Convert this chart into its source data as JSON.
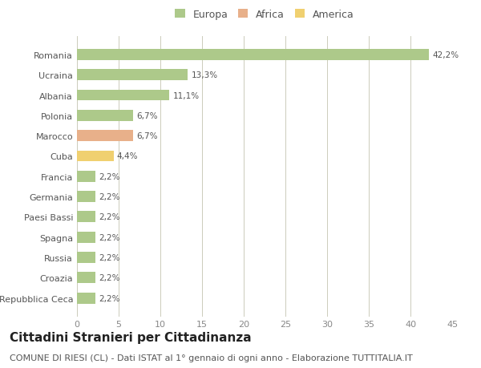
{
  "countries": [
    "Romania",
    "Ucraina",
    "Albania",
    "Polonia",
    "Marocco",
    "Cuba",
    "Francia",
    "Germania",
    "Paesi Bassi",
    "Spagna",
    "Russia",
    "Croazia",
    "Repubblica Ceca"
  ],
  "values": [
    42.2,
    13.3,
    11.1,
    6.7,
    6.7,
    4.4,
    2.2,
    2.2,
    2.2,
    2.2,
    2.2,
    2.2,
    2.2
  ],
  "labels": [
    "42,2%",
    "13,3%",
    "11,1%",
    "6,7%",
    "6,7%",
    "4,4%",
    "2,2%",
    "2,2%",
    "2,2%",
    "2,2%",
    "2,2%",
    "2,2%",
    "2,2%"
  ],
  "colors": [
    "#adc98a",
    "#adc98a",
    "#adc98a",
    "#adc98a",
    "#e8b08a",
    "#f0d070",
    "#adc98a",
    "#adc98a",
    "#adc98a",
    "#adc98a",
    "#adc98a",
    "#adc98a",
    "#adc98a"
  ],
  "legend_labels": [
    "Europa",
    "Africa",
    "America"
  ],
  "legend_colors": [
    "#adc98a",
    "#e8b08a",
    "#f0d070"
  ],
  "xlim": [
    0,
    45
  ],
  "xticks": [
    0,
    5,
    10,
    15,
    20,
    25,
    30,
    35,
    40,
    45
  ],
  "title": "Cittadini Stranieri per Cittadinanza",
  "subtitle": "COMUNE DI RIESI (CL) - Dati ISTAT al 1° gennaio di ogni anno - Elaborazione TUTTITALIA.IT",
  "bg_color": "#ffffff",
  "bar_height": 0.55,
  "title_fontsize": 11,
  "subtitle_fontsize": 8,
  "label_fontsize": 7.5,
  "tick_fontsize": 8,
  "legend_fontsize": 9
}
